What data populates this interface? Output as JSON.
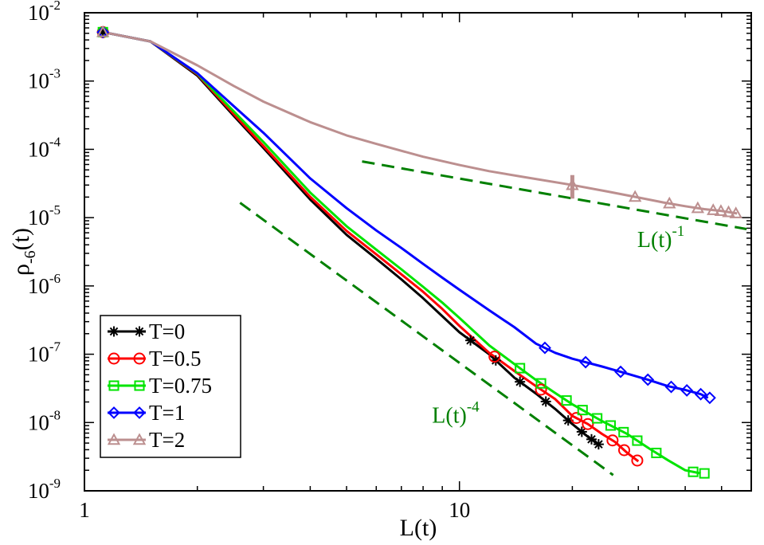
{
  "chart_data": {
    "type": "line",
    "xscale": "log",
    "yscale": "log",
    "xlim": [
      1,
      60
    ],
    "ylim_exponent": [
      -9,
      -2
    ],
    "xlabel": "L(t)",
    "ylabel": {
      "base": "ρ",
      "sub": "-6",
      "suffix": "(t)"
    },
    "x_ticks": [
      {
        "value": 1,
        "label": "1"
      },
      {
        "value": 10,
        "label": "10"
      }
    ],
    "y_ticks": [
      {
        "exp": -9,
        "base": "10",
        "sup": "-9"
      },
      {
        "exp": -8,
        "base": "10",
        "sup": "-8"
      },
      {
        "exp": -7,
        "base": "10",
        "sup": "-7"
      },
      {
        "exp": -6,
        "base": "10",
        "sup": "-6"
      },
      {
        "exp": -5,
        "base": "10",
        "sup": "-5"
      },
      {
        "exp": -4,
        "base": "10",
        "sup": "-4"
      },
      {
        "exp": -3,
        "base": "10",
        "sup": "-3"
      },
      {
        "exp": -2,
        "base": "10",
        "sup": "-2"
      }
    ],
    "legend_position": "bottom-left",
    "series": [
      {
        "name": "T=0",
        "color": "#000000",
        "marker": "star",
        "x": [
          1.12,
          1.5,
          2.0,
          2.5,
          3.0,
          4.0,
          5.0,
          6.0,
          7.0,
          8.0,
          9.0,
          10.0,
          12.0,
          14.0,
          16.0,
          18.0,
          20.0,
          22.0,
          23.5
        ],
        "y": [
          0.0052,
          0.0038,
          0.0012,
          0.00031,
          0.000105,
          1.84e-05,
          5.6e-06,
          2.5e-06,
          1.25e-06,
          6.6e-07,
          3.6e-07,
          2.1e-07,
          1e-07,
          4.55e-08,
          2.65e-08,
          1.58e-08,
          9.5e-09,
          6.2e-09,
          4.8e-09
        ],
        "marker_x": [
          1.12,
          10.7,
          12.5,
          14.5,
          17.0,
          19.5,
          21.2,
          22.5,
          23.5
        ]
      },
      {
        "name": "T=0.5",
        "color": "#ff0000",
        "marker": "circle",
        "x": [
          1.12,
          1.5,
          2.0,
          2.5,
          3.0,
          4.0,
          5.0,
          6.0,
          7.0,
          8.0,
          9.0,
          10.0,
          12.0,
          14.0,
          16.0,
          18.0,
          20.0,
          22.0,
          24.0,
          26.0,
          28.0,
          30.0
        ],
        "y": [
          0.0052,
          0.0038,
          0.00125,
          0.00033,
          0.000112,
          2.02e-05,
          6.4e-06,
          2.9e-06,
          1.48e-06,
          8.2e-07,
          4.6e-07,
          2.6e-07,
          1.05e-07,
          5.7e-08,
          3.4e-08,
          2.2e-08,
          1.25e-08,
          9.5e-09,
          6.8e-09,
          5.2e-09,
          3.6e-09,
          2.7e-09
        ],
        "marker_x": [
          1.12,
          12.4,
          16.5,
          20.5,
          22.0,
          25.6,
          27.5,
          29.8
        ]
      },
      {
        "name": "T=0.75",
        "color": "#00e400",
        "marker": "square",
        "x": [
          1.12,
          1.5,
          2.0,
          2.5,
          3.0,
          4.0,
          5.0,
          6.0,
          7.0,
          8.0,
          9.0,
          10.0,
          12.0,
          14.0,
          16.0,
          18.0,
          20.0,
          24.0,
          28.0,
          32.0,
          36.0,
          40.0,
          44.0
        ],
        "y": [
          0.0052,
          0.0038,
          0.00128,
          0.00036,
          0.000128,
          2.33e-05,
          7.5e-06,
          3.4e-06,
          1.75e-06,
          9.7e-07,
          5.7e-07,
          3.4e-07,
          1.35e-07,
          7.2e-08,
          4.2e-08,
          2.7e-08,
          1.85e-08,
          1.05e-08,
          6.8e-09,
          4.2e-09,
          2.8e-09,
          2e-09,
          1.8e-09
        ],
        "marker_x": [
          1.12,
          14.5,
          16.5,
          19.3,
          21.3,
          23.3,
          25.3,
          27.4,
          29.8,
          33.5,
          42.0,
          45.0
        ]
      },
      {
        "name": "T=1",
        "color": "#0000ff",
        "marker": "diamond",
        "x": [
          1.12,
          1.5,
          2.0,
          2.5,
          3.0,
          4.0,
          5.0,
          6.0,
          7.0,
          8.0,
          9.0,
          10.0,
          12.0,
          14.0,
          16.0,
          18.0,
          20.0,
          24.0,
          28.0,
          32.0,
          36.0,
          40.0,
          44.0,
          46.0
        ],
        "y": [
          0.0052,
          0.0038,
          0.0013,
          0.00043,
          0.000175,
          3.75e-05,
          1.38e-05,
          6.5e-06,
          3.6e-06,
          2.1e-06,
          1.32e-06,
          8.8e-07,
          4.4e-07,
          2.5e-07,
          1.43e-07,
          1.05e-07,
          8.6e-08,
          6.6e-08,
          5.2e-08,
          4.2e-08,
          3.4e-08,
          3e-08,
          2.6e-08,
          2.3e-08
        ],
        "marker_x": [
          1.12,
          16.9,
          21.7,
          26.9,
          31.8,
          36.7,
          40.4,
          44.0,
          46.5
        ]
      },
      {
        "name": "T=2",
        "color": "#bc8f8f",
        "marker": "triangle",
        "x": [
          1.12,
          1.5,
          2.0,
          2.5,
          3.0,
          4.0,
          5.0,
          6.0,
          8.0,
          10.0,
          12.0,
          15.0,
          20.0,
          25.0,
          30.0,
          35.0,
          40.0,
          45.0,
          50.0,
          55.0
        ],
        "y": [
          0.0052,
          0.0038,
          0.0017,
          0.00085,
          0.0005,
          0.00025,
          0.00016,
          0.00012,
          7.8e-05,
          5.9e-05,
          4.8e-05,
          3.9e-05,
          3e-05,
          2.4e-05,
          1.97e-05,
          1.67e-05,
          1.47e-05,
          1.33e-05,
          1.25e-05,
          1.15e-05
        ],
        "marker_x": [
          1.12,
          20.0,
          29.4,
          36.3,
          43.2,
          47.5,
          49.8,
          52.2,
          54.6
        ]
      }
    ],
    "error_bar": {
      "x": 20.0,
      "y_low": 1.9e-05,
      "y_high": 4.2e-05,
      "color": "#bc8f8f"
    },
    "guide_lines": [
      {
        "label_base": "L(t)",
        "label_sup": "-4",
        "x": [
          2.6,
          25.7
        ],
        "y": [
          1.65e-05,
          1.7e-09
        ],
        "color": "#008000",
        "label_x": 8.45,
        "label_y": 1e-08
      },
      {
        "label_base": "L(t)",
        "label_sup": "-1",
        "x": [
          5.5,
          58.3
        ],
        "y": [
          6.65e-05,
          6.8e-06
        ],
        "color": "#008000",
        "label_x": 29.8,
        "label_y": 3.7e-06
      }
    ]
  }
}
